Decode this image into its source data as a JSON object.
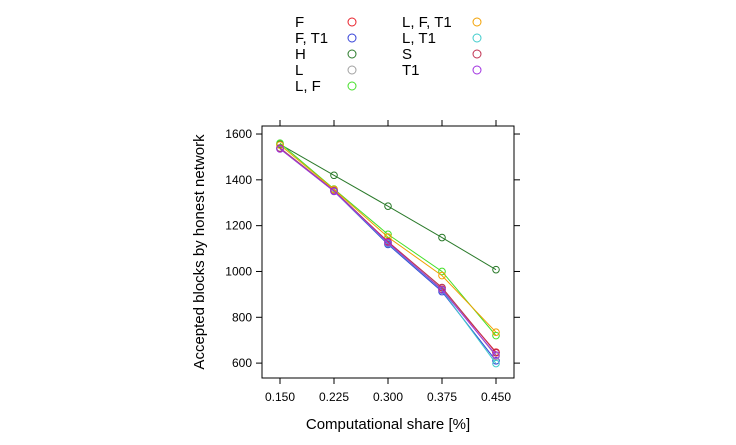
{
  "chart_data": {
    "type": "line",
    "title": "",
    "xlabel": "Computational share [%]",
    "ylabel": "Accepted blocks by honest network",
    "x": [
      "0.150",
      "0.225",
      "0.300",
      "0.375",
      "0.450"
    ],
    "x_values": [
      0.15,
      0.225,
      0.3,
      0.375,
      0.45
    ],
    "xlim": [
      0.125,
      0.475
    ],
    "ylim": [
      535,
      1635
    ],
    "yticks": [
      600,
      800,
      1000,
      1200,
      1400,
      1600
    ],
    "grid": false,
    "legend_position": "top",
    "series": [
      {
        "name": "F",
        "color": "#e8202a",
        "values": [
          1537,
          1352,
          1120,
          922,
          648
        ]
      },
      {
        "name": "F, T1",
        "color": "#3340d8",
        "values": [
          1538,
          1350,
          1118,
          912,
          610
        ]
      },
      {
        "name": "H",
        "color": "#2a7a2a",
        "values": [
          1555,
          1420,
          1285,
          1148,
          1008
        ]
      },
      {
        "name": "L",
        "color": "#a0a0a0",
        "values": [
          1540,
          1355,
          1128,
          928,
          630
        ]
      },
      {
        "name": "L, F",
        "color": "#44e028",
        "values": [
          1560,
          1360,
          1162,
          1000,
          720
        ]
      },
      {
        "name": "L, F, T1",
        "color": "#f2a000",
        "values": [
          1552,
          1358,
          1150,
          982,
          735
        ]
      },
      {
        "name": "L, T1",
        "color": "#40cccc",
        "values": [
          1536,
          1350,
          1122,
          918,
          598
        ]
      },
      {
        "name": "S",
        "color": "#c03050",
        "values": [
          1538,
          1352,
          1130,
          930,
          645
        ]
      },
      {
        "name": "T1",
        "color": "#a030e0",
        "values": [
          1535,
          1350,
          1125,
          920,
          635
        ]
      }
    ]
  }
}
